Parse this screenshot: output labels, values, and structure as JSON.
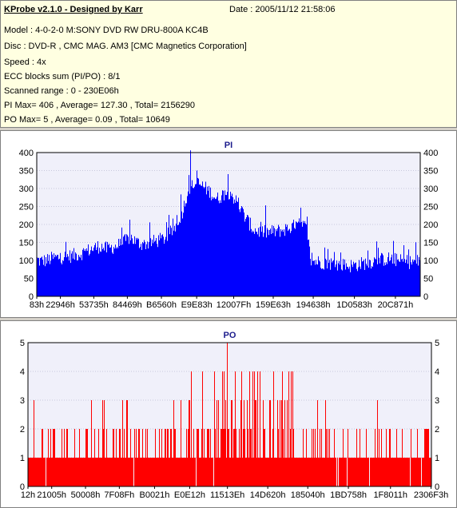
{
  "info": {
    "title": "KProbe v2.1.0 - Designed by Karr",
    "date": "Date : 2005/11/12 21:58:06",
    "lines": [
      "Model : 4-0-2-0 M:SONY    DVD RW DRU-800A  KC4B",
      "Disc : DVD-R , CMC MAG. AM3 [CMC Magnetics Corporation]",
      "Speed : 4x",
      "ECC blocks sum (PI/PO) : 8/1",
      "Scanned range : 0 - 230E06h",
      "PI Max= 406 , Average= 127.30 , Total= 2156290",
      "PO Max= 5 , Average= 0.09 , Total= 10649"
    ]
  },
  "chart_data": [
    {
      "type": "bar",
      "title": "PI",
      "color": "#0000ff",
      "plot_bg": "#f0f0fa",
      "ylim": [
        0,
        400
      ],
      "yticks": [
        0,
        50,
        100,
        150,
        200,
        250,
        300,
        350,
        400
      ],
      "xlim": [
        131,
        2297350
      ],
      "xticks": [
        {
          "label": "83h",
          "value": 131
        },
        {
          "label": "22946h",
          "value": 141638
        },
        {
          "label": "53735h",
          "value": 341813
        },
        {
          "label": "84469h",
          "value": 542825
        },
        {
          "label": "B6560h",
          "value": 746848
        },
        {
          "label": "E9E83h",
          "value": 958083
        },
        {
          "label": "12007Fh",
          "value": 1179775
        },
        {
          "label": "159E63h",
          "value": 1416803
        },
        {
          "label": "194638h",
          "value": 1656376
        },
        {
          "label": "1D0583h",
          "value": 1902979
        },
        {
          "label": "20C871h",
          "value": 2148465
        }
      ],
      "profile": [
        [
          0,
          103
        ],
        [
          20000,
          98
        ],
        [
          60000,
          100
        ],
        [
          100000,
          107
        ],
        [
          140000,
          108
        ],
        [
          200000,
          112
        ],
        [
          260000,
          118
        ],
        [
          320000,
          130
        ],
        [
          380000,
          140
        ],
        [
          420000,
          132
        ],
        [
          480000,
          140
        ],
        [
          520000,
          150
        ],
        [
          560000,
          165
        ],
        [
          600000,
          150
        ],
        [
          640000,
          145
        ],
        [
          700000,
          152
        ],
        [
          760000,
          160
        ],
        [
          820000,
          185
        ],
        [
          870000,
          230
        ],
        [
          910000,
          300
        ],
        [
          960000,
          315
        ],
        [
          1000000,
          305
        ],
        [
          1040000,
          290
        ],
        [
          1080000,
          270
        ],
        [
          1120000,
          285
        ],
        [
          1160000,
          290
        ],
        [
          1200000,
          260
        ],
        [
          1250000,
          220
        ],
        [
          1300000,
          185
        ],
        [
          1360000,
          178
        ],
        [
          1420000,
          180
        ],
        [
          1480000,
          185
        ],
        [
          1540000,
          195
        ],
        [
          1580000,
          200
        ],
        [
          1620000,
          190
        ],
        [
          1640000,
          100
        ],
        [
          1700000,
          95
        ],
        [
          1760000,
          92
        ],
        [
          1820000,
          88
        ],
        [
          1880000,
          85
        ],
        [
          1940000,
          90
        ],
        [
          2000000,
          96
        ],
        [
          2060000,
          102
        ],
        [
          2120000,
          105
        ],
        [
          2180000,
          98
        ],
        [
          2240000,
          95
        ],
        [
          2297350,
          98
        ]
      ],
      "max": 406
    },
    {
      "type": "bar",
      "title": "PO",
      "color": "#ff0000",
      "plot_bg": "#f0f0fa",
      "ylim": [
        0,
        5
      ],
      "yticks": [
        0,
        1,
        2,
        3,
        4,
        5
      ],
      "xlim": [
        18,
        2297587
      ],
      "xticks": [
        {
          "label": "12h",
          "value": 18
        },
        {
          "label": "21005h",
          "value": 135173
        },
        {
          "label": "50008h",
          "value": 327688
        },
        {
          "label": "7F08Fh",
          "value": 520335
        },
        {
          "label": "B0021h",
          "value": 720929
        },
        {
          "label": "E0E12h",
          "value": 921106
        },
        {
          "label": "11513Eh",
          "value": 1135934
        },
        {
          "label": "14D620h",
          "value": 1365536
        },
        {
          "label": "185040h",
          "value": 1593408
        },
        {
          "label": "1BD758h",
          "value": 1824600
        },
        {
          "label": "1F8011h",
          "value": 2064401
        },
        {
          "label": "2306F3h",
          "value": 2295539
        }
      ],
      "max": 5
    }
  ]
}
